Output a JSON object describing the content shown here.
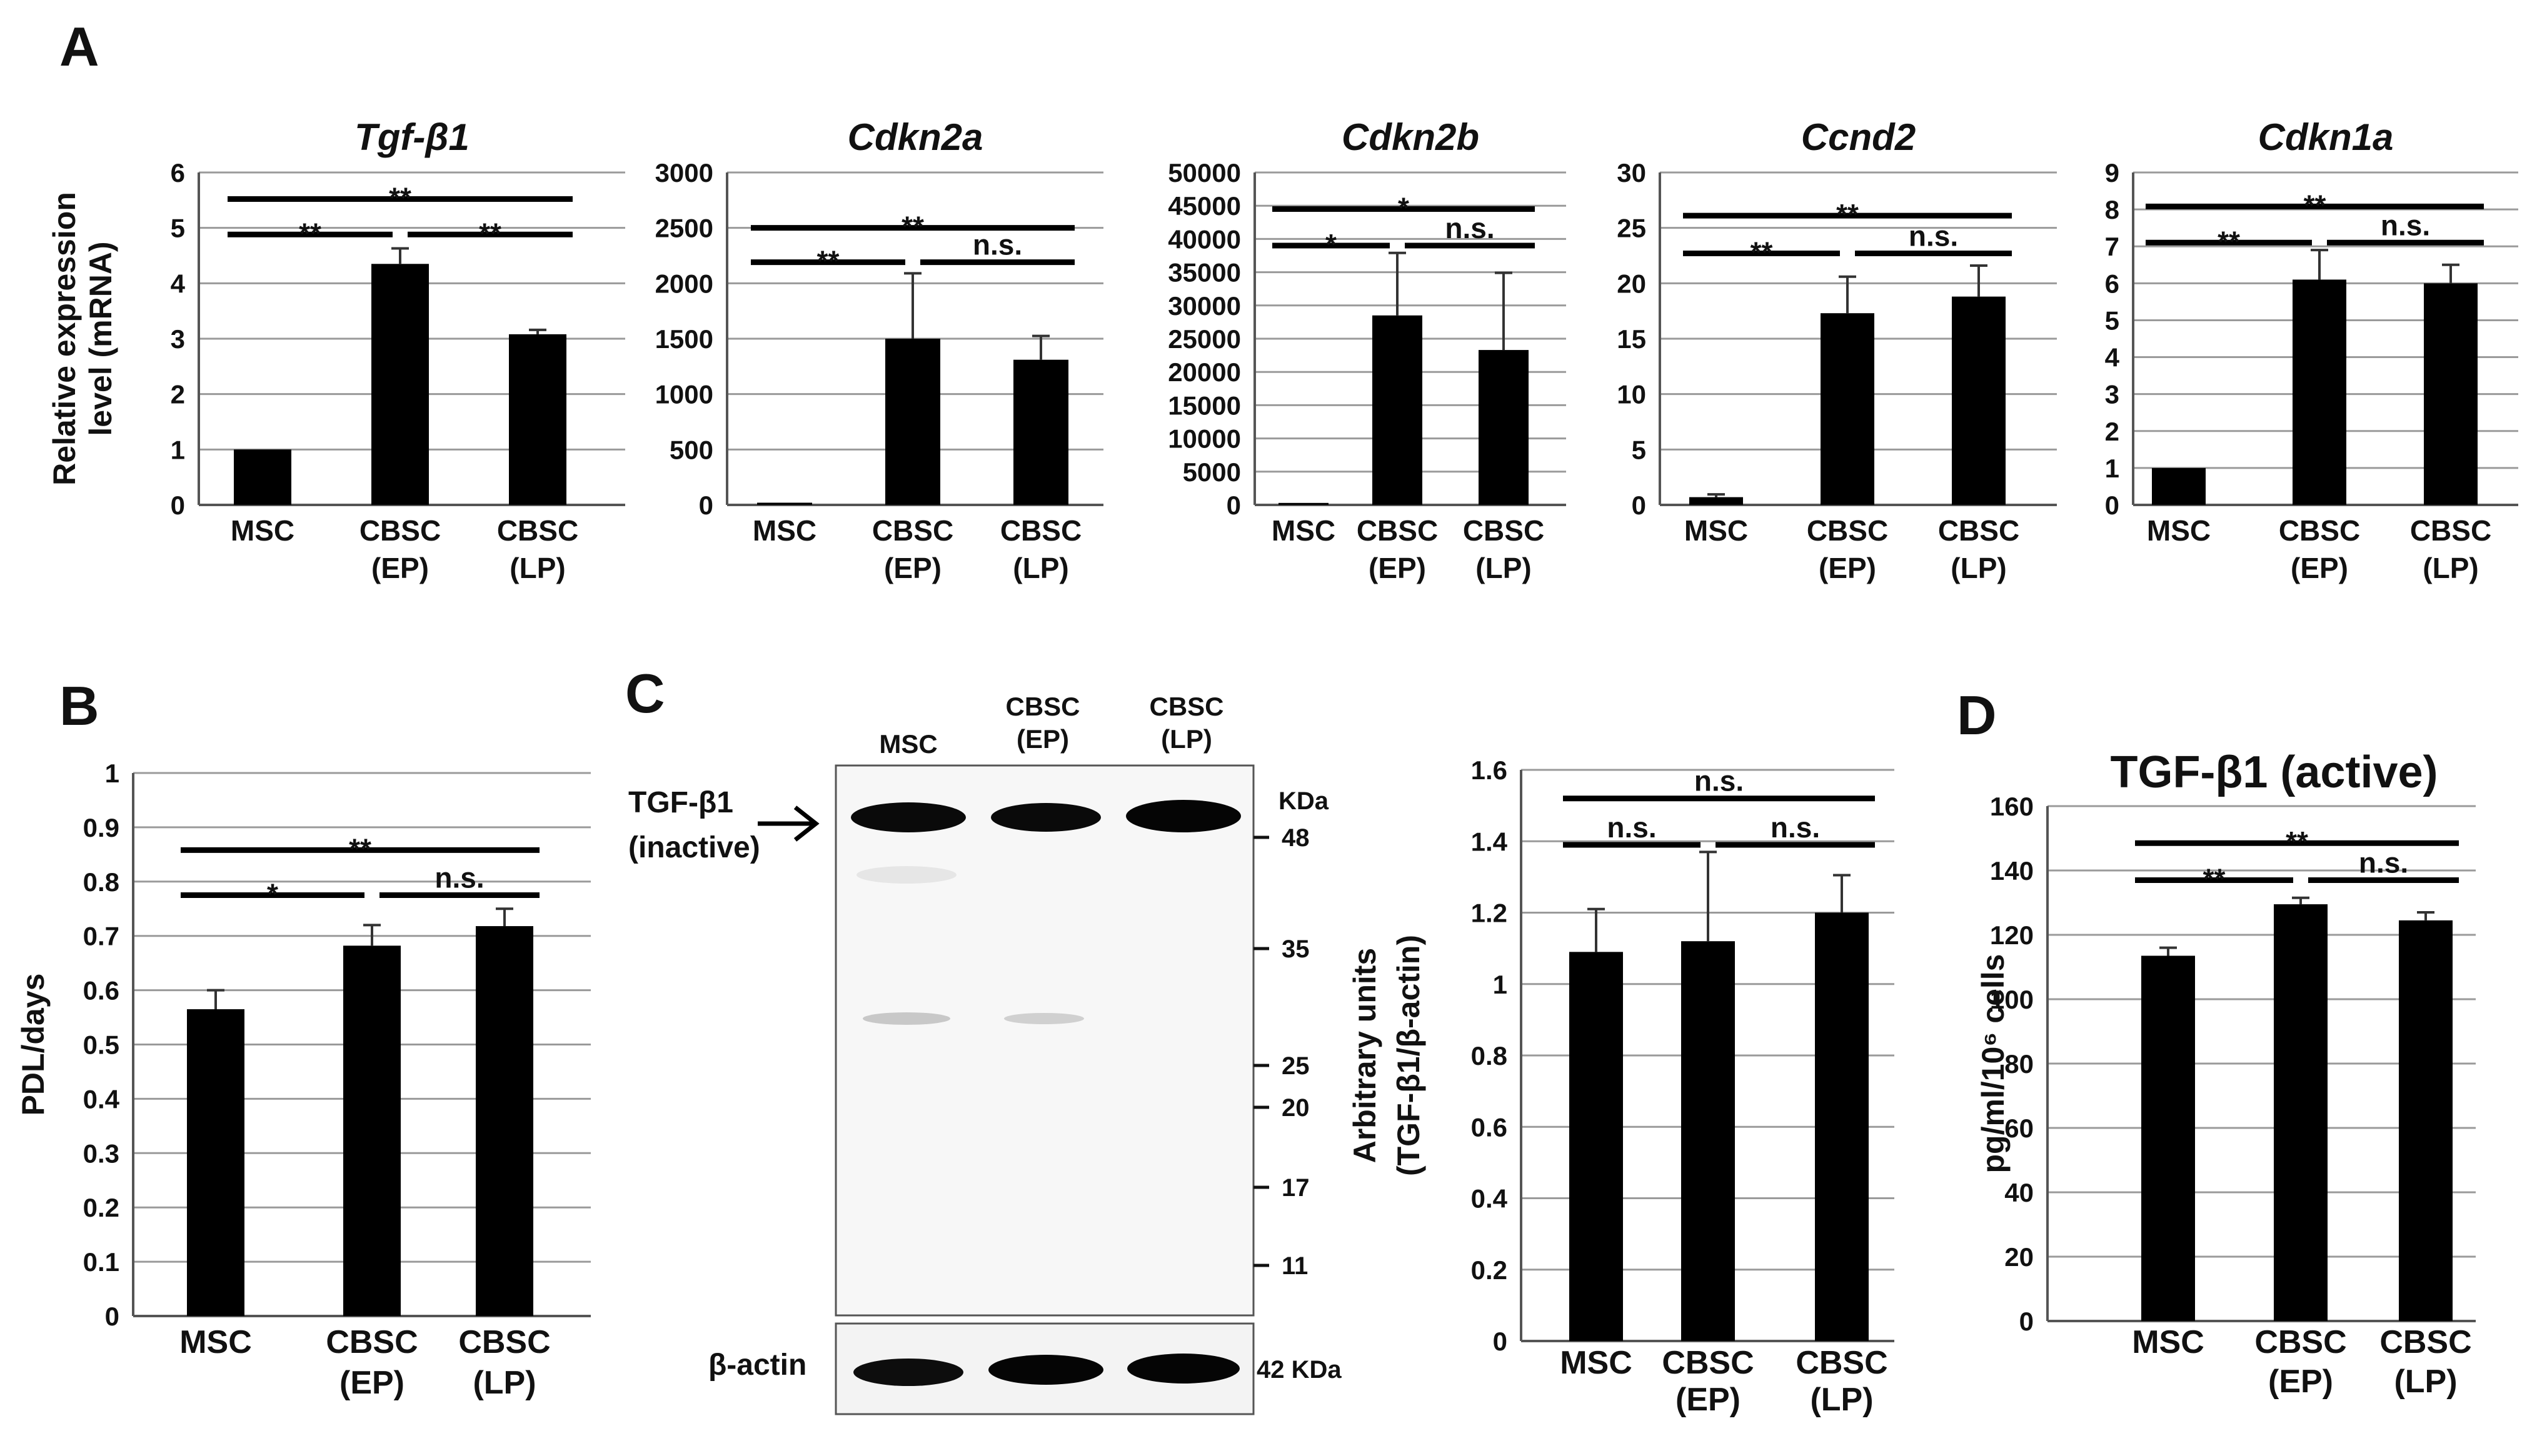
{
  "panels": {
    "A": "A",
    "B": "B",
    "C": "C",
    "D": "D"
  },
  "chart_data": [
    {
      "id": "A1",
      "type": "bar",
      "title": "Tgf-β1",
      "title_italic": true,
      "ylabel": [
        "Relative expression",
        "level (mRNA)"
      ],
      "categories": [
        [
          "MSC"
        ],
        [
          "CBSC",
          "(EP)"
        ],
        [
          "CBSC",
          "(LP)"
        ]
      ],
      "values": [
        1.0,
        4.35,
        3.08
      ],
      "errors": [
        0,
        0.28,
        0.08
      ],
      "ylim": [
        0,
        6
      ],
      "yticks": [
        0,
        1,
        2,
        3,
        4,
        5,
        6
      ],
      "significance": [
        {
          "from": 0,
          "to": 2,
          "label": "**",
          "level": 5.52
        },
        {
          "from": 0,
          "to": 1,
          "label": "**",
          "level": 4.88
        },
        {
          "from": 1,
          "to": 2,
          "label": "**",
          "level": 4.88
        }
      ],
      "grid": true
    },
    {
      "id": "A2",
      "type": "bar",
      "title": "Cdkn2a",
      "title_italic": true,
      "categories": [
        [
          "MSC"
        ],
        [
          "CBSC",
          "(EP)"
        ],
        [
          "CBSC",
          "(LP)"
        ]
      ],
      "values": [
        20,
        1500,
        1310
      ],
      "errors": [
        0,
        590,
        215
      ],
      "ylim": [
        0,
        3000
      ],
      "yticks": [
        0,
        500,
        1000,
        1500,
        2000,
        2500,
        3000
      ],
      "significance": [
        {
          "from": 0,
          "to": 2,
          "label": "**",
          "level": 2500
        },
        {
          "from": 0,
          "to": 1,
          "label": "**",
          "level": 2190
        },
        {
          "from": 1,
          "to": 2,
          "label": "n.s.",
          "level": 2190
        }
      ],
      "grid": true
    },
    {
      "id": "A3",
      "type": "bar",
      "title": "Cdkn2b",
      "title_italic": true,
      "categories": [
        [
          "MSC"
        ],
        [
          "CBSC",
          "(EP)"
        ],
        [
          "CBSC",
          "(LP)"
        ]
      ],
      "values": [
        300,
        28500,
        23300
      ],
      "errors": [
        0,
        9400,
        11600
      ],
      "ylim": [
        0,
        50000
      ],
      "yticks": [
        0,
        5000,
        10000,
        15000,
        20000,
        25000,
        30000,
        35000,
        40000,
        45000,
        50000
      ],
      "significance": [
        {
          "from": 0,
          "to": 2,
          "label": "*",
          "level": 44500
        },
        {
          "from": 0,
          "to": 1,
          "label": "*",
          "level": 39000
        },
        {
          "from": 1,
          "to": 2,
          "label": "n.s.",
          "level": 39000
        }
      ],
      "grid": true
    },
    {
      "id": "A4",
      "type": "bar",
      "title": "Ccnd2",
      "title_italic": true,
      "categories": [
        [
          "MSC"
        ],
        [
          "CBSC",
          "(EP)"
        ],
        [
          "CBSC",
          "(LP)"
        ]
      ],
      "values": [
        0.7,
        17.3,
        18.8
      ],
      "errors": [
        0.25,
        3.3,
        2.8
      ],
      "ylim": [
        0,
        30
      ],
      "yticks": [
        0,
        5,
        10,
        15,
        20,
        25,
        30
      ],
      "significance": [
        {
          "from": 0,
          "to": 2,
          "label": "**",
          "level": 26.1
        },
        {
          "from": 0,
          "to": 1,
          "label": "**",
          "level": 22.7
        },
        {
          "from": 1,
          "to": 2,
          "label": "n.s.",
          "level": 22.7
        }
      ],
      "grid": true
    },
    {
      "id": "A5",
      "type": "bar",
      "title": "Cdkn1a",
      "title_italic": true,
      "categories": [
        [
          "MSC"
        ],
        [
          "CBSC",
          "(EP)"
        ],
        [
          "CBSC",
          "(LP)"
        ]
      ],
      "values": [
        1.0,
        6.1,
        6.0
      ],
      "errors": [
        0,
        0.8,
        0.5
      ],
      "ylim": [
        0,
        9
      ],
      "yticks": [
        0,
        1,
        2,
        3,
        4,
        5,
        6,
        7,
        8,
        9
      ],
      "significance": [
        {
          "from": 0,
          "to": 2,
          "label": "**",
          "level": 8.08
        },
        {
          "from": 0,
          "to": 1,
          "label": "**",
          "level": 7.1
        },
        {
          "from": 1,
          "to": 2,
          "label": "n.s.",
          "level": 7.1
        }
      ],
      "grid": true
    },
    {
      "id": "B",
      "type": "bar",
      "title": "",
      "ylabel": [
        "PDL/days"
      ],
      "categories": [
        [
          "MSC"
        ],
        [
          "CBSC",
          "(EP)"
        ],
        [
          "CBSC",
          "(LP)"
        ]
      ],
      "values": [
        0.565,
        0.682,
        0.718
      ],
      "errors": [
        0.035,
        0.038,
        0.032
      ],
      "ylim": [
        0,
        1
      ],
      "yticks": [
        "0",
        "0.1",
        "0.2",
        "0.3",
        "0.4",
        "0.5",
        "0.6",
        "0.7",
        "0.8",
        "0.9",
        "1"
      ],
      "significance": [
        {
          "from": 0,
          "to": 2,
          "label": "**",
          "level": 0.858
        },
        {
          "from": 0,
          "to": 1,
          "label": "*",
          "level": 0.775
        },
        {
          "from": 1,
          "to": 2,
          "label": "n.s.",
          "level": 0.775
        }
      ],
      "grid": true
    },
    {
      "id": "C",
      "type": "bar",
      "title": "",
      "ylabel": [
        "Arbitrary units",
        "(TGF-β1/β-actin)"
      ],
      "categories": [
        [
          "MSC"
        ],
        [
          "CBSC",
          "(EP)"
        ],
        [
          "CBSC",
          "(LP)"
        ]
      ],
      "values": [
        1.09,
        1.12,
        1.2
      ],
      "errors": [
        0.12,
        0.25,
        0.105
      ],
      "ylim": [
        0,
        1.6
      ],
      "yticks": [
        "0",
        "0.2",
        "0.4",
        "0.6",
        "0.8",
        "1",
        "1.2",
        "1.4",
        "1.6"
      ],
      "significance": [
        {
          "from": 0,
          "to": 2,
          "label": "n.s.",
          "level": 1.52
        },
        {
          "from": 0,
          "to": 1,
          "label": "n.s.",
          "level": 1.39
        },
        {
          "from": 1,
          "to": 2,
          "label": "n.s.",
          "level": 1.39
        }
      ],
      "grid": true
    },
    {
      "id": "D",
      "type": "bar",
      "title": "TGF-β1 (active)",
      "title_italic": false,
      "ylabel": [
        "pg/ml/10⁶ cells"
      ],
      "categories": [
        [
          "MSC"
        ],
        [
          "CBSC",
          "(EP)"
        ],
        [
          "CBSC",
          "(LP)"
        ]
      ],
      "values": [
        113.5,
        129.5,
        124.5
      ],
      "errors": [
        2.5,
        2.0,
        2.5
      ],
      "ylim": [
        0,
        160
      ],
      "yticks": [
        0,
        20,
        40,
        60,
        80,
        100,
        120,
        140,
        160
      ],
      "significance": [
        {
          "from": 0,
          "to": 2,
          "label": "**",
          "level": 148.5
        },
        {
          "from": 0,
          "to": 1,
          "label": "**",
          "level": 137
        },
        {
          "from": 1,
          "to": 2,
          "label": "n.s.",
          "level": 137
        }
      ],
      "grid": true
    }
  ],
  "blot": {
    "lanes": [
      [
        "MSC"
      ],
      [
        "CBSC",
        "(EP)"
      ],
      [
        "CBSC",
        "(LP)"
      ]
    ],
    "target_label": [
      "TGF-β1",
      "(inactive)"
    ],
    "loading_label": "β-actin",
    "kda_header": "KDa",
    "markers": [
      "48",
      "35",
      "25",
      "20",
      "17",
      "11"
    ],
    "loading_kda": "42 KDa"
  }
}
